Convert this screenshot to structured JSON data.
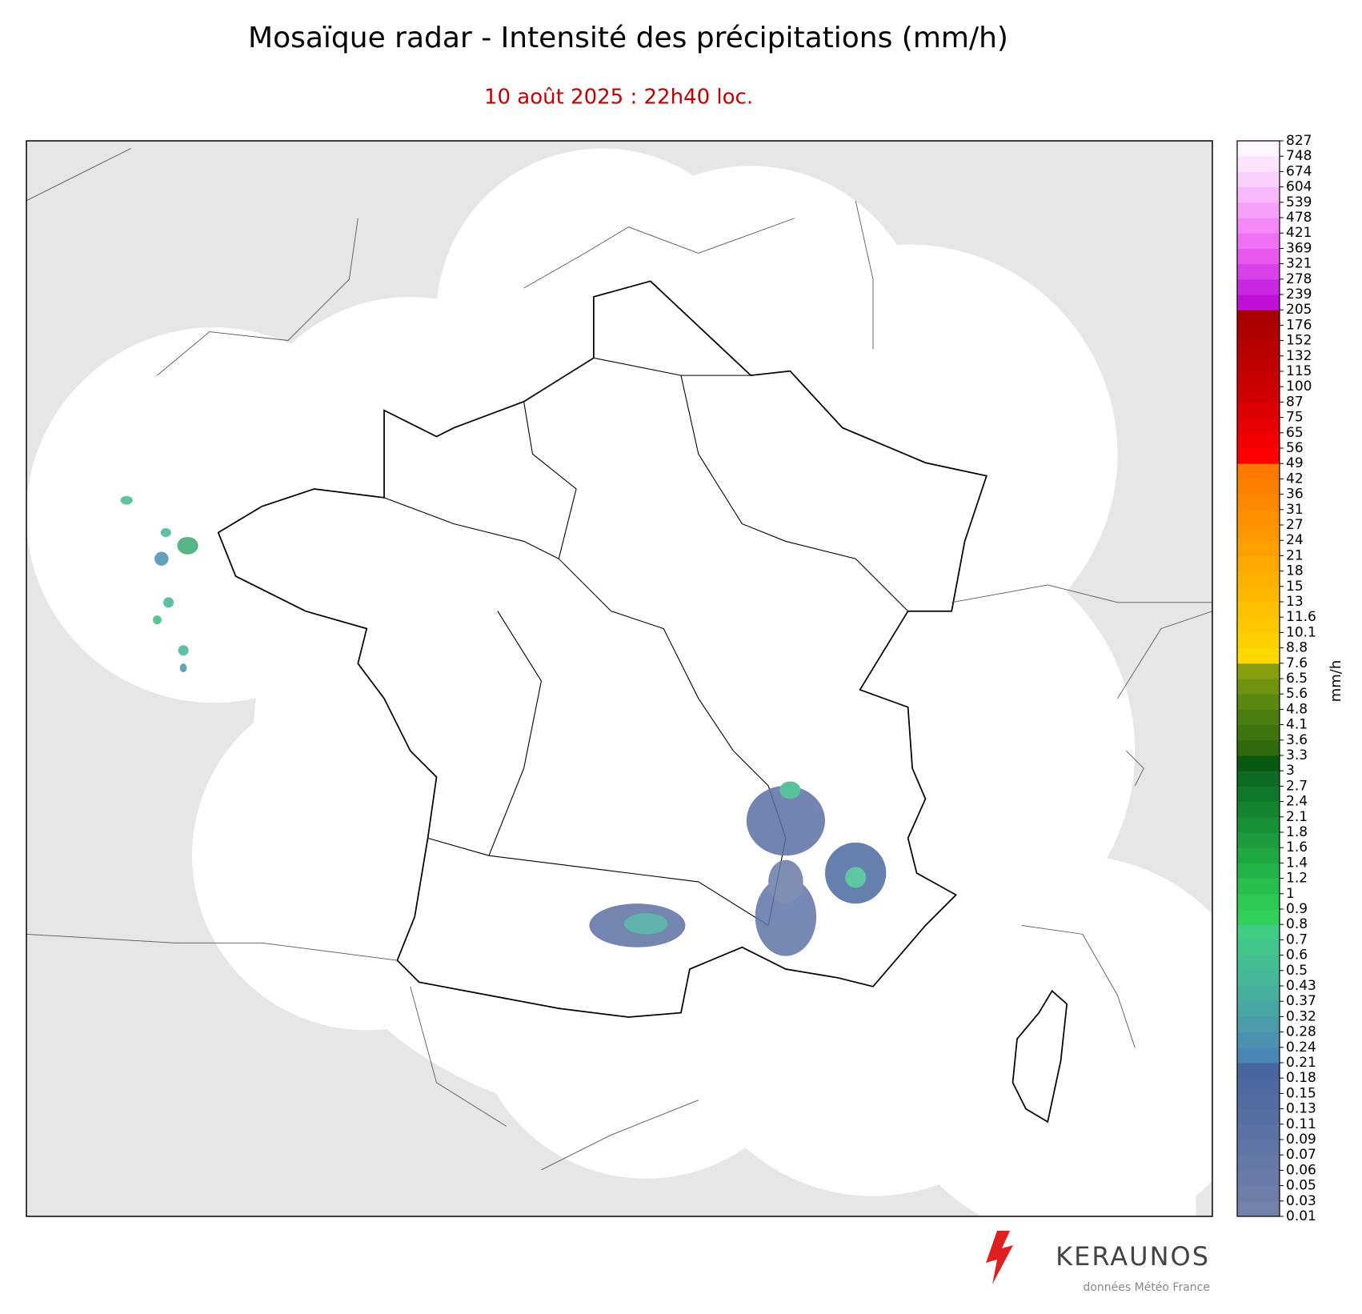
{
  "title": "Mosaïque radar - Intensité des précipitations (mm/h)",
  "subtitle": "10 août 2025 : 22h40 loc.",
  "colorbar": {
    "label": "mm/h",
    "ticks": [
      0.01,
      0.03,
      0.05,
      0.06,
      0.07,
      0.09,
      0.11,
      0.13,
      0.15,
      0.18,
      0.21,
      0.24,
      0.28,
      0.32,
      0.37,
      0.43,
      0.5,
      0.6,
      0.7,
      0.8,
      0.9,
      1,
      1.2,
      1.4,
      1.6,
      1.8,
      2.1,
      2.4,
      2.7,
      3,
      3.3,
      3.6,
      4.1,
      4.8,
      5.6,
      6.5,
      7.6,
      8.8,
      10.1,
      11.6,
      13,
      15,
      18,
      21,
      24,
      27,
      31,
      36,
      42,
      49,
      56,
      65,
      75,
      87,
      100,
      115,
      132,
      152,
      176,
      205,
      239,
      278,
      321,
      369,
      421,
      478,
      539,
      604,
      674,
      748,
      827
    ],
    "colors": [
      "#7481ab",
      "#6f7ea9",
      "#6a7ba8",
      "#6578a6",
      "#6075a5",
      "#5b72a3",
      "#566fa2",
      "#516ca1",
      "#4c69a0",
      "#47669f",
      "#4a87b5",
      "#4a92b0",
      "#4a9caa",
      "#49a6a4",
      "#47ae9e",
      "#45b698",
      "#43bd92",
      "#42c48b",
      "#41cc85",
      "#30d05a",
      "#2cc854",
      "#28be4e",
      "#24b348",
      "#20a842",
      "#1c9c3c",
      "#189036",
      "#148430",
      "#10782a",
      "#0c6c24",
      "#085a10",
      "#2f6a0c",
      "#3d740e",
      "#4b7e10",
      "#5a8810",
      "#6e9410",
      "#879e10",
      "#ffd800",
      "#ffd000",
      "#ffc800",
      "#ffc000",
      "#ffb800",
      "#ffb000",
      "#ffa800",
      "#ffa000",
      "#ff9800",
      "#ff9000",
      "#ff8800",
      "#ff8000",
      "#ff7800",
      "#ff0000",
      "#f40000",
      "#e80000",
      "#dc0000",
      "#d00000",
      "#c80000",
      "#c00000",
      "#b80000",
      "#b00000",
      "#a80000",
      "#c010d8",
      "#c828e0",
      "#d840e8",
      "#e858f0",
      "#f070f4",
      "#f488f6",
      "#f6a0f8",
      "#f8b8fa",
      "#facffb",
      "#fce4fd",
      "#fff6ff"
    ]
  },
  "logo": {
    "brand": "KERAUNOS",
    "credit": "données Météo France"
  }
}
